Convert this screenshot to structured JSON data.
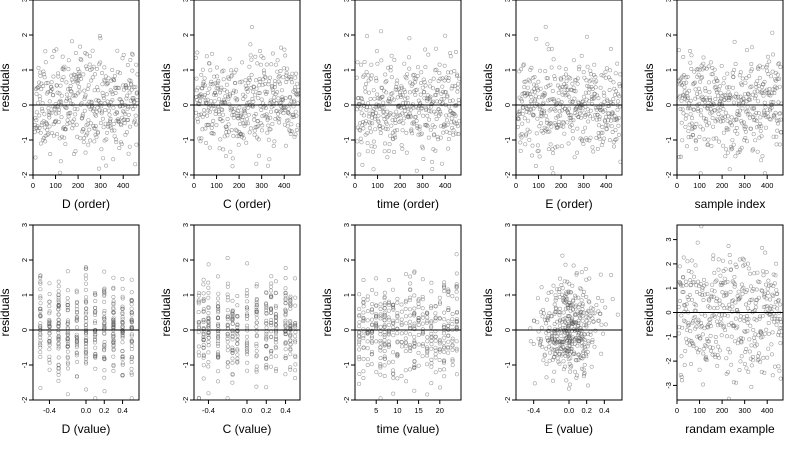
{
  "chart_data": [
    {
      "type": "scatter",
      "xlabel": "D (order)",
      "ylabel": "residuals",
      "xlim": [
        0,
        470
      ],
      "ylim": [
        -2,
        3
      ],
      "xticks": [
        "0",
        "100",
        "200",
        "300",
        "400"
      ],
      "yticks": [
        "-2",
        "-1",
        "0",
        "1",
        "2",
        "3"
      ],
      "reference_line_y": 0,
      "n_points": 420,
      "x_mode": "order",
      "seed": 11
    },
    {
      "type": "scatter",
      "xlabel": "C (order)",
      "ylabel": "residuals",
      "xlim": [
        0,
        470
      ],
      "ylim": [
        -2,
        3
      ],
      "xticks": [
        "0",
        "100",
        "200",
        "300",
        "400"
      ],
      "yticks": [
        "-2",
        "-1",
        "0",
        "1",
        "2",
        "3"
      ],
      "reference_line_y": 0,
      "n_points": 420,
      "x_mode": "order",
      "seed": 23
    },
    {
      "type": "scatter",
      "xlabel": "time (order)",
      "ylabel": "residuals",
      "xlim": [
        0,
        470
      ],
      "ylim": [
        -2,
        3
      ],
      "xticks": [
        "0",
        "100",
        "200",
        "300",
        "400"
      ],
      "yticks": [
        "-2",
        "-1",
        "0",
        "1",
        "2",
        "3"
      ],
      "reference_line_y": 0,
      "n_points": 420,
      "x_mode": "order",
      "seed": 37
    },
    {
      "type": "scatter",
      "xlabel": "E (order)",
      "ylabel": "residuals",
      "xlim": [
        0,
        470
      ],
      "ylim": [
        -2,
        3
      ],
      "xticks": [
        "0",
        "100",
        "200",
        "300",
        "400"
      ],
      "yticks": [
        "-2",
        "-1",
        "0",
        "1",
        "2",
        "3"
      ],
      "reference_line_y": 0,
      "n_points": 420,
      "x_mode": "order",
      "seed": 41
    },
    {
      "type": "scatter",
      "xlabel": "sample index",
      "ylabel": "residuals",
      "xlim": [
        0,
        470
      ],
      "ylim": [
        -2,
        3
      ],
      "xticks": [
        "0",
        "100",
        "200",
        "300",
        "400"
      ],
      "yticks": [
        "-2",
        "-1",
        "0",
        "1",
        "2",
        "3"
      ],
      "reference_line_y": 0,
      "n_points": 420,
      "x_mode": "order",
      "seed": 53
    },
    {
      "type": "scatter",
      "xlabel": "D (value)",
      "ylabel": "residuals",
      "xlim": [
        -0.58,
        0.58
      ],
      "ylim": [
        -2,
        3
      ],
      "xticks": [
        "-0.4",
        "0.0",
        "0.2",
        "0.4"
      ],
      "yticks": [
        "-2",
        "-1",
        "0",
        "1",
        "2",
        "3"
      ],
      "reference_line_y": 0,
      "n_points": 420,
      "x_mode": "discrete",
      "x_levels": [
        -0.5,
        -0.4,
        -0.3,
        -0.2,
        -0.1,
        0.0,
        0.1,
        0.2,
        0.3,
        0.4,
        0.5
      ],
      "seed": 61
    },
    {
      "type": "scatter",
      "xlabel": "C (value)",
      "ylabel": "residuals",
      "xlim": [
        -0.55,
        0.55
      ],
      "ylim": [
        -2,
        3
      ],
      "xticks": [
        "-0.4",
        "0.0",
        "0.2",
        "0.4"
      ],
      "yticks": [
        "-2",
        "-1",
        "0",
        "1",
        "2",
        "3"
      ],
      "reference_line_y": 0,
      "n_points": 420,
      "x_mode": "discrete",
      "x_levels": [
        -0.5,
        -0.45,
        -0.4,
        -0.3,
        -0.2,
        -0.15,
        -0.1,
        0.0,
        0.1,
        0.2,
        0.25,
        0.3,
        0.4,
        0.45,
        0.5
      ],
      "seed": 73
    },
    {
      "type": "scatter",
      "xlabel": "time (value)",
      "ylabel": "residuals",
      "xlim": [
        0,
        25
      ],
      "ylim": [
        -2,
        3
      ],
      "xticks": [
        "5",
        "10",
        "15",
        "20"
      ],
      "yticks": [
        "-2",
        "-1",
        "0",
        "1",
        "2",
        "3"
      ],
      "reference_line_y": 0,
      "n_points": 420,
      "x_mode": "discrete",
      "x_levels": [
        1,
        2,
        3,
        4,
        5,
        6,
        7,
        8,
        9,
        10,
        11,
        12,
        13,
        14,
        15,
        16,
        17,
        18,
        19,
        20,
        21,
        22,
        23,
        24
      ],
      "seed": 89
    },
    {
      "type": "scatter",
      "xlabel": "E (value)",
      "ylabel": "residuals",
      "xlim": [
        -0.6,
        0.6
      ],
      "ylim": [
        -2,
        3
      ],
      "xticks": [
        "-0.4",
        "0.0",
        "0.2",
        "0.4"
      ],
      "yticks": [
        "-2",
        "-1",
        "0",
        "1",
        "2",
        "3"
      ],
      "reference_line_y": 0,
      "n_points": 420,
      "x_mode": "normal",
      "x_center": 0.0,
      "x_spread": 0.17,
      "seed": 97
    },
    {
      "type": "scatter",
      "xlabel": "randam example",
      "ylabel": "residuals",
      "xlim": [
        0,
        470
      ],
      "ylim": [
        -3.6,
        3.6
      ],
      "xticks": [
        "0",
        "100",
        "200",
        "300",
        "400"
      ],
      "yticks": [
        "-3",
        "-2",
        "-1",
        "0",
        "1",
        "2",
        "3"
      ],
      "reference_line_y": 0,
      "n_points": 420,
      "x_mode": "order",
      "y_spread": 1.25,
      "seed": 101
    }
  ]
}
